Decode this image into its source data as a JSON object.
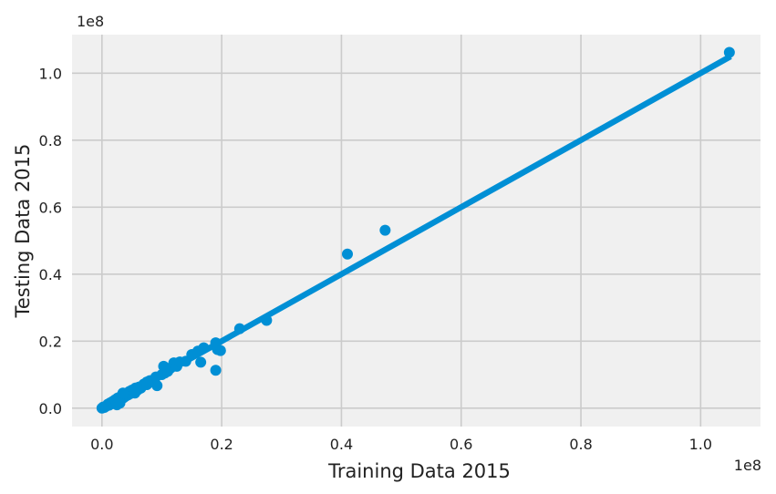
{
  "chart_data": {
    "type": "scatter",
    "title": "",
    "xlabel": "Training Data 2015",
    "ylabel": "Testing Data 2015",
    "x_offset_label": "1e8",
    "y_offset_label": "1e8",
    "xlim": [
      -0.05,
      1.1
    ],
    "ylim": [
      -0.055,
      1.115
    ],
    "x_ticks": [
      0.0,
      0.2,
      0.4,
      0.6,
      0.8,
      1.0
    ],
    "x_tick_labels": [
      "0.0",
      "0.2",
      "0.4",
      "0.6",
      "0.8",
      "1.0"
    ],
    "y_ticks": [
      0.0,
      0.2,
      0.4,
      0.6,
      0.8,
      1.0
    ],
    "y_tick_labels": [
      "0.0",
      "0.2",
      "0.4",
      "0.6",
      "0.8",
      "1.0"
    ],
    "grid": true,
    "legend": "none",
    "colors": {
      "series": "#008fd5",
      "background": "#f0f0f0",
      "grid": "#cbcbcb"
    },
    "fit_line": {
      "x": [
        0.0,
        1.05
      ],
      "y": [
        0.0,
        1.05
      ]
    },
    "series": [
      {
        "type": "scatter",
        "points": [
          [
            0.0,
            0.0
          ],
          [
            0.002,
            0.003
          ],
          [
            0.004,
            0.002
          ],
          [
            0.006,
            0.005
          ],
          [
            0.008,
            0.007
          ],
          [
            0.01,
            0.012
          ],
          [
            0.012,
            0.009
          ],
          [
            0.014,
            0.016
          ],
          [
            0.016,
            0.013
          ],
          [
            0.018,
            0.02
          ],
          [
            0.02,
            0.018
          ],
          [
            0.022,
            0.025
          ],
          [
            0.024,
            0.02
          ],
          [
            0.026,
            0.03
          ],
          [
            0.028,
            0.024
          ],
          [
            0.03,
            0.033
          ],
          [
            0.032,
            0.028
          ],
          [
            0.034,
            0.037
          ],
          [
            0.036,
            0.031
          ],
          [
            0.038,
            0.042
          ],
          [
            0.04,
            0.036
          ],
          [
            0.042,
            0.045
          ],
          [
            0.044,
            0.04
          ],
          [
            0.046,
            0.05
          ],
          [
            0.048,
            0.044
          ],
          [
            0.05,
            0.054
          ],
          [
            0.053,
            0.049
          ],
          [
            0.056,
            0.06
          ],
          [
            0.06,
            0.055
          ],
          [
            0.062,
            0.063
          ],
          [
            0.065,
            0.06
          ],
          [
            0.07,
            0.072
          ],
          [
            0.075,
            0.07
          ],
          [
            0.08,
            0.082
          ],
          [
            0.085,
            0.08
          ],
          [
            0.09,
            0.093
          ],
          [
            0.092,
            0.067
          ],
          [
            0.1,
            0.1
          ],
          [
            0.103,
            0.125
          ],
          [
            0.105,
            0.105
          ],
          [
            0.11,
            0.11
          ],
          [
            0.115,
            0.12
          ],
          [
            0.12,
            0.135
          ],
          [
            0.125,
            0.125
          ],
          [
            0.13,
            0.138
          ],
          [
            0.14,
            0.14
          ],
          [
            0.15,
            0.16
          ],
          [
            0.16,
            0.17
          ],
          [
            0.165,
            0.137
          ],
          [
            0.17,
            0.18
          ],
          [
            0.19,
            0.195
          ],
          [
            0.19,
            0.113
          ],
          [
            0.193,
            0.175
          ],
          [
            0.198,
            0.172
          ],
          [
            0.23,
            0.237
          ],
          [
            0.275,
            0.262
          ],
          [
            0.41,
            0.46
          ],
          [
            0.473,
            0.531
          ],
          [
            1.048,
            1.062
          ],
          [
            0.025,
            0.01
          ],
          [
            0.03,
            0.015
          ],
          [
            0.035,
            0.045
          ],
          [
            0.055,
            0.045
          ],
          [
            0.075,
            0.078
          ]
        ]
      }
    ]
  }
}
